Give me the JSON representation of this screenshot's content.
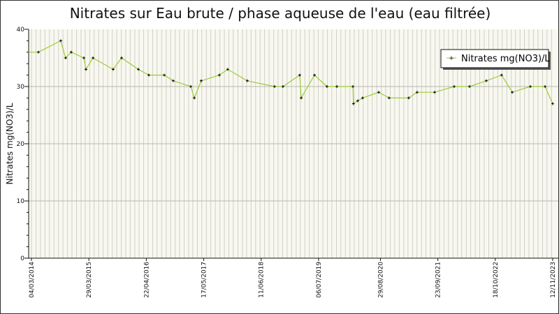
{
  "chart_data": {
    "type": "line",
    "title": "Nitrates sur Eau brute / phase aqueuse de l'eau (eau filtrée)",
    "xlabel": "",
    "ylabel": "Nitrates mg(NO3)/L",
    "ylim": [
      0,
      40
    ],
    "yticks": [
      "0",
      "10",
      "20",
      "30",
      "40"
    ],
    "xlim": [
      "2014-03-04",
      "2023-11-12"
    ],
    "xticks": [
      "04/03/2014",
      "29/03/2015",
      "22/04/2016",
      "17/05/2017",
      "11/06/2018",
      "06/07/2019",
      "29/08/2020",
      "23/09/2021",
      "18/10/2022",
      "12/11/2023"
    ],
    "grid": true,
    "legend": "top-right",
    "line_color": "#9acd32",
    "background": "#f8f8f0",
    "series": [
      {
        "name": "Nitrates mg(NO3)/L",
        "x": [
          "2014-04-20",
          "2014-09-19",
          "2014-10-22",
          "2014-11-29",
          "2015-02-23",
          "2015-03-09",
          "2015-04-26",
          "2015-09-10",
          "2015-11-06",
          "2016-02-28",
          "2016-05-09",
          "2016-08-22",
          "2016-10-22",
          "2017-02-18",
          "2017-03-14",
          "2017-04-30",
          "2017-08-31",
          "2017-10-27",
          "2018-03-09",
          "2018-09-10",
          "2018-11-06",
          "2019-02-28",
          "2019-03-10",
          "2019-06-08",
          "2019-09-01",
          "2019-11-07",
          "2020-02-24",
          "2020-02-28",
          "2020-03-28",
          "2020-04-30",
          "2020-08-17",
          "2020-10-27",
          "2021-03-09",
          "2021-05-05",
          "2021-09-01",
          "2022-01-12",
          "2022-04-26",
          "2022-08-18",
          "2022-11-30",
          "2023-02-10",
          "2023-06-13",
          "2023-09-21",
          "2023-11-12"
        ],
        "values": [
          36,
          38,
          35,
          36,
          35,
          33,
          35,
          33,
          35,
          33,
          32,
          32,
          31,
          30,
          28,
          31,
          32,
          33,
          31,
          30,
          30,
          32,
          28,
          32,
          30,
          30,
          30,
          27,
          27.5,
          28,
          29,
          28,
          28,
          29,
          29,
          30,
          30,
          31,
          32,
          29,
          30,
          30,
          27
        ]
      }
    ]
  }
}
